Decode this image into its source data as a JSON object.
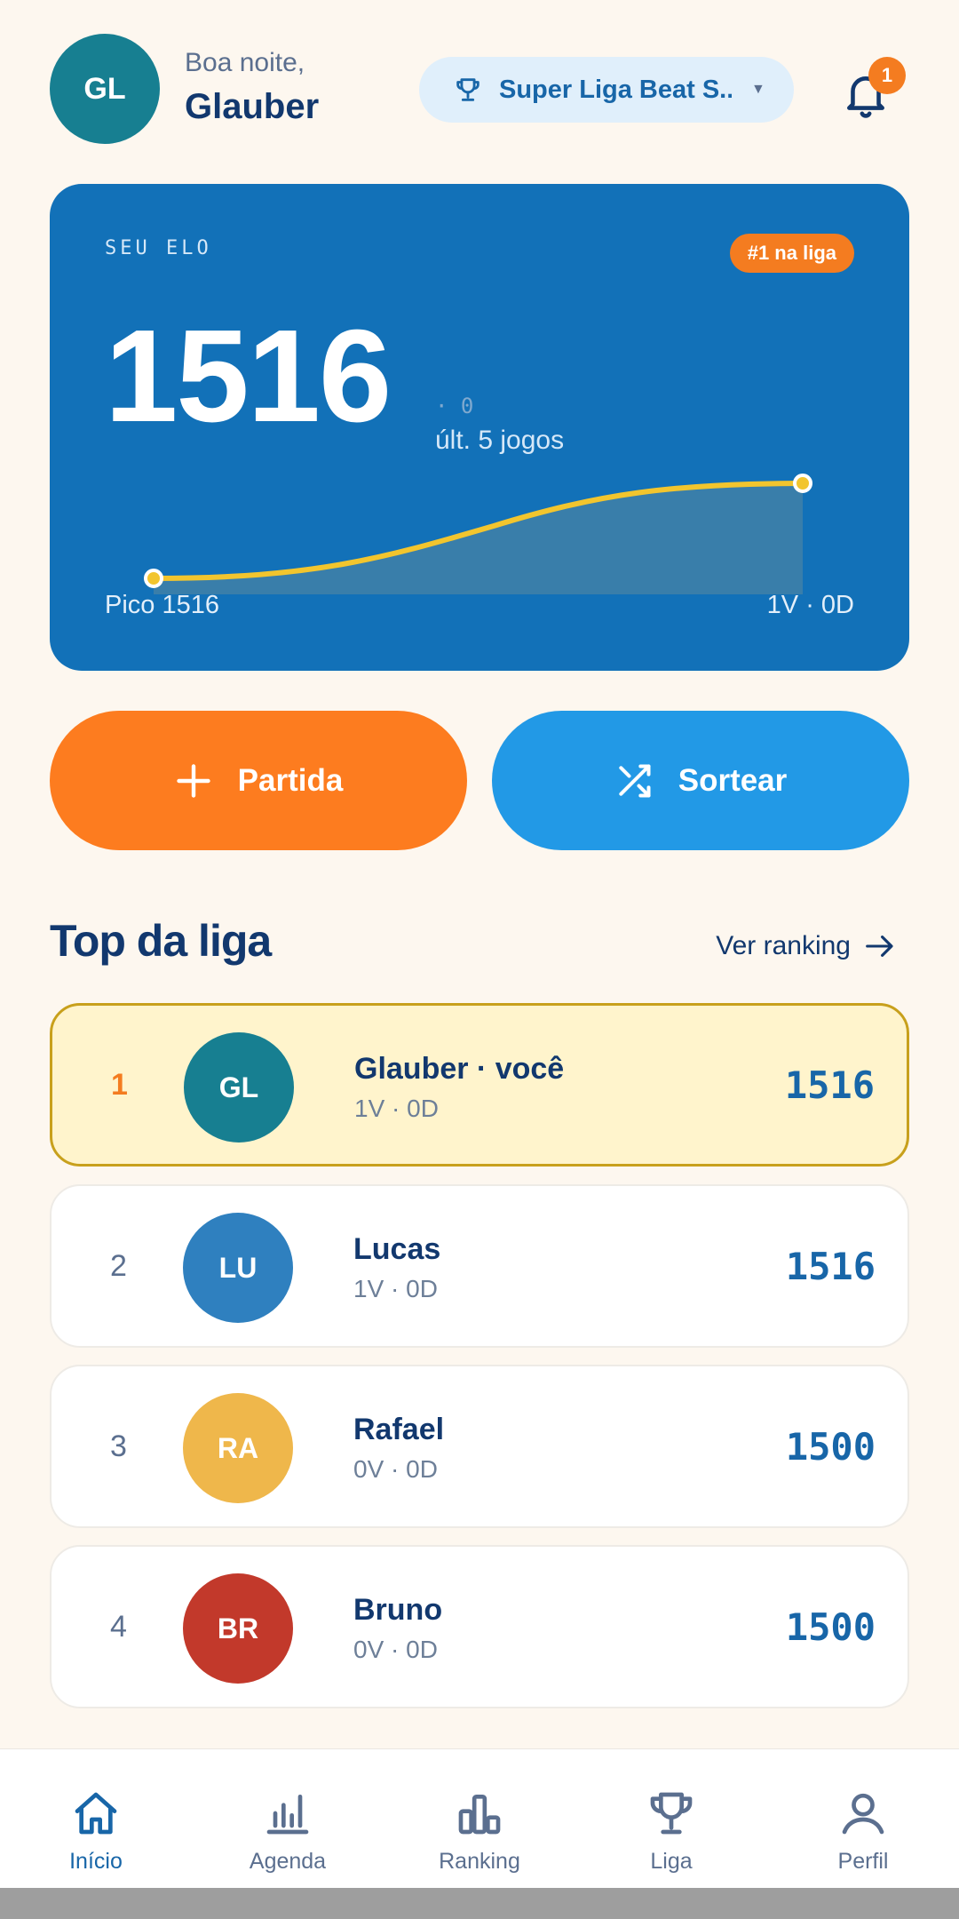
{
  "colors": {
    "background": "#fdf7ef",
    "navy": "#12386e",
    "card_blue": "#1271b8",
    "accent_orange": "#fd7c1f",
    "accent_blue": "#2299e6",
    "chart_line": "#f2c52e",
    "highlight_row": "#fff4cc"
  },
  "header": {
    "avatar_initials": "GL",
    "greeting": "Boa noite,",
    "user_name": "Glauber",
    "league_name": "Super Liga Beat S...",
    "league_icon": "trophy-icon",
    "notifications_icon": "bell-icon",
    "notification_count": "1"
  },
  "elo_card": {
    "label": "SEU ELO",
    "rank_badge": "#1 na liga",
    "value": "1516",
    "delta": "· 0",
    "period": "últ. 5 jogos",
    "peak": "Pico 1516",
    "record": "1V · 0D",
    "sparkline": {
      "x": [
        0,
        1
      ],
      "y": [
        1516,
        1516
      ]
    }
  },
  "actions": {
    "partida_label": "Partida",
    "partida_icon": "plus-icon",
    "sortear_label": "Sortear",
    "sortear_icon": "shuffle-icon"
  },
  "top_league": {
    "title": "Top da liga",
    "see_all": "Ver ranking",
    "see_all_icon": "arrow-right-icon",
    "rows": [
      {
        "pos": "1",
        "initials": "GL",
        "name": "Glauber · você",
        "record": "1V · 0D",
        "elo": "1516",
        "avatar_color": "#177f91",
        "is_me": true
      },
      {
        "pos": "2",
        "initials": "LU",
        "name": "Lucas",
        "record": "1V · 0D",
        "elo": "1516",
        "avatar_color": "#2f80bf",
        "is_me": false
      },
      {
        "pos": "3",
        "initials": "RA",
        "name": "Rafael",
        "record": "0V · 0D",
        "elo": "1500",
        "avatar_color": "#efb74b",
        "is_me": false
      },
      {
        "pos": "4",
        "initials": "BR",
        "name": "Bruno",
        "record": "0V · 0D",
        "elo": "1500",
        "avatar_color": "#c2392b",
        "is_me": false
      }
    ]
  },
  "bottom_nav": {
    "items": [
      {
        "label": "Início",
        "icon": "home-icon",
        "active": true
      },
      {
        "label": "Agenda",
        "icon": "bar-chart-icon",
        "active": false
      },
      {
        "label": "Ranking",
        "icon": "podium-icon",
        "active": false
      },
      {
        "label": "Liga",
        "icon": "trophy-icon",
        "active": false
      },
      {
        "label": "Perfil",
        "icon": "user-icon",
        "active": false
      }
    ]
  }
}
